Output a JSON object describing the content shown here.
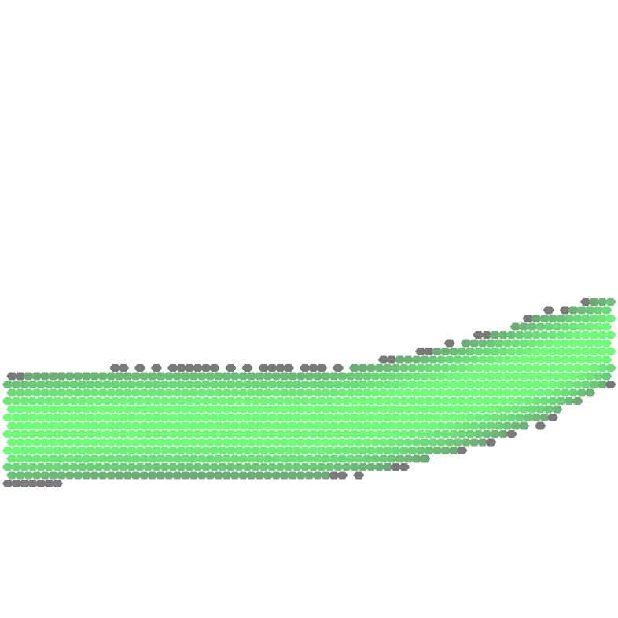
{
  "scene": {
    "background_color": "#ffffff",
    "map_kind": "hexagonal tile map",
    "region": {
      "name": "grass-band",
      "description_type": "curved band of hex tiles",
      "fill_colors": {
        "border": "#7a7a7a",
        "edge": "#6fa878",
        "mid": "#6cd67a",
        "core": "#72fa7b"
      }
    }
  }
}
